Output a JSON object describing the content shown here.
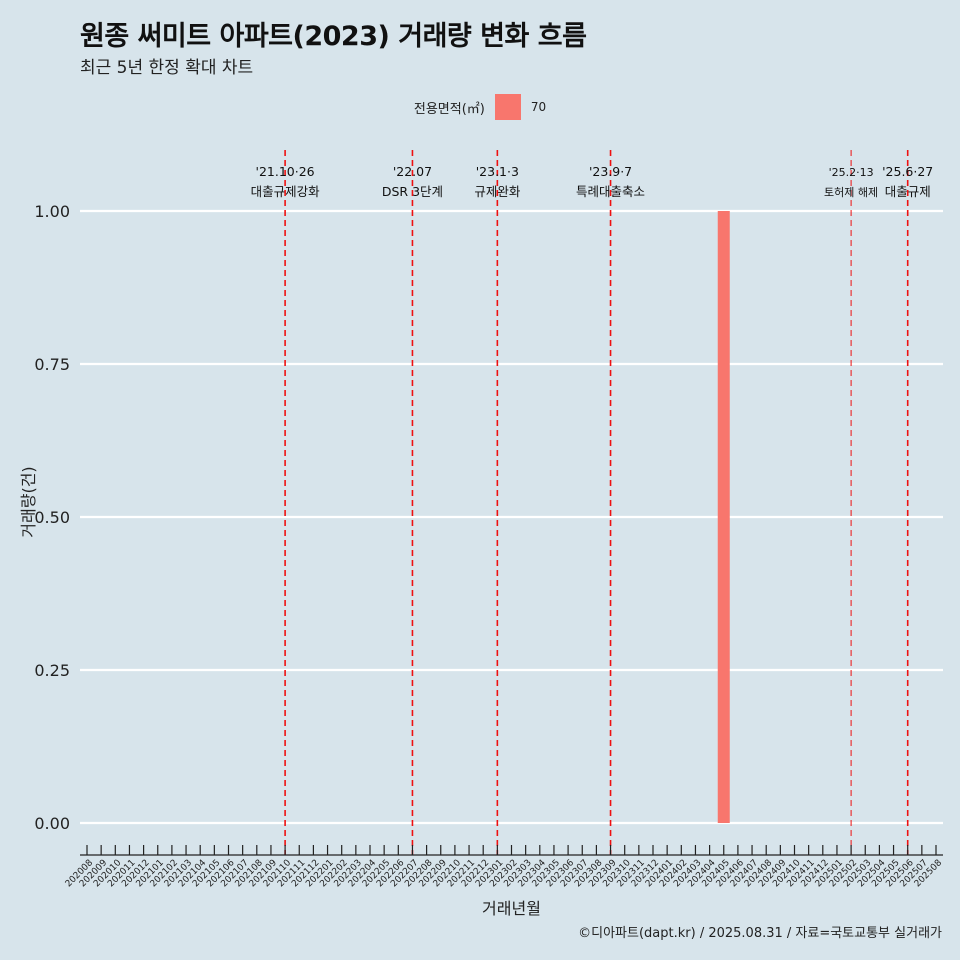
{
  "title": "원종 써미트 아파트(2023) 거래량 변화 흐름",
  "subtitle": "최근 5년 한정 확대 차트",
  "caption": "©디아파트(dapt.kr) / 2025.08.31 / 자료=국토교통부 실거래가",
  "legend": {
    "title": "전용면적(㎡)",
    "value": "70",
    "color": "#f8766d"
  },
  "chart_data": {
    "type": "bar",
    "xlabel": "거래년월",
    "ylabel": "거래량(건)",
    "ylim": [
      0,
      1
    ],
    "yticks": [
      "0.00",
      "0.25",
      "0.50",
      "0.75",
      "1.00"
    ],
    "categories": [
      "202008",
      "202009",
      "202010",
      "202011",
      "202012",
      "202101",
      "202102",
      "202103",
      "202104",
      "202105",
      "202106",
      "202107",
      "202108",
      "202109",
      "202110",
      "202111",
      "202112",
      "202201",
      "202202",
      "202203",
      "202204",
      "202205",
      "202206",
      "202207",
      "202208",
      "202209",
      "202210",
      "202211",
      "202212",
      "202301",
      "202302",
      "202303",
      "202304",
      "202305",
      "202306",
      "202307",
      "202308",
      "202309",
      "202310",
      "202311",
      "202312",
      "202401",
      "202402",
      "202403",
      "202404",
      "202405",
      "202406",
      "202407",
      "202408",
      "202409",
      "202410",
      "202411",
      "202412",
      "202501",
      "202502",
      "202503",
      "202504",
      "202505",
      "202506",
      "202507",
      "202508"
    ],
    "series": [
      {
        "name": "70",
        "color": "#f8766d",
        "values": [
          0,
          0,
          0,
          0,
          0,
          0,
          0,
          0,
          0,
          0,
          0,
          0,
          0,
          0,
          0,
          0,
          0,
          0,
          0,
          0,
          0,
          0,
          0,
          0,
          0,
          0,
          0,
          0,
          0,
          0,
          0,
          0,
          0,
          0,
          0,
          0,
          0,
          0,
          0,
          0,
          0,
          0,
          0,
          0,
          0,
          1,
          0,
          0,
          0,
          0,
          0,
          0,
          0,
          0,
          0,
          0,
          0,
          0,
          0,
          0,
          0
        ]
      }
    ],
    "annotations": [
      {
        "at": 14.0,
        "date": "'21.10·26",
        "label": "대출규제강화",
        "thin": false
      },
      {
        "at": 23.0,
        "date": "'22.07",
        "label": "DSR 3단계",
        "thin": false
      },
      {
        "at": 29.0,
        "date": "'23.1·3",
        "label": "규제완화",
        "thin": false
      },
      {
        "at": 37.0,
        "date": "'23.9·7",
        "label": "특례대출축소",
        "thin": false
      },
      {
        "at": 54.0,
        "date": "'25.2·13",
        "label": "토허제 해제",
        "thin": true
      },
      {
        "at": 58.0,
        "date": "'25.6·27",
        "label": "대출규제",
        "thin": false
      }
    ]
  }
}
